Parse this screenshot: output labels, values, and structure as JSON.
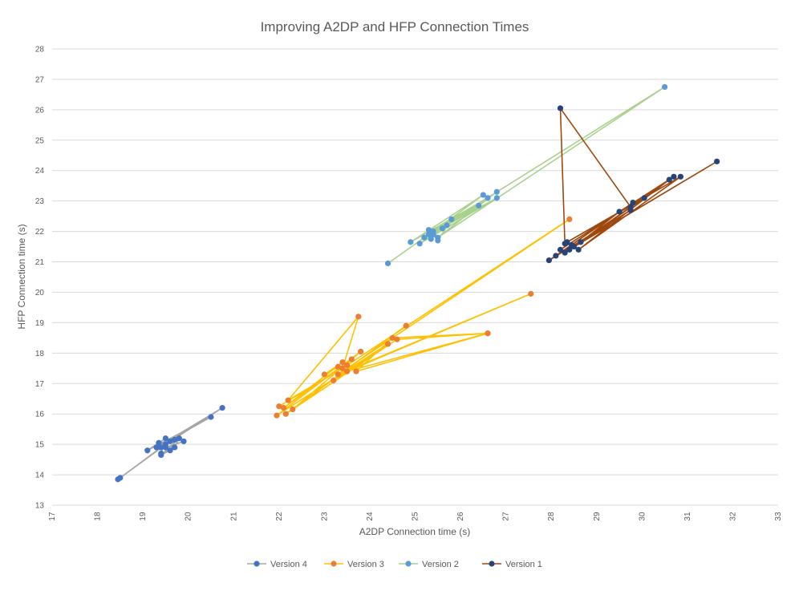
{
  "chart_data": {
    "type": "scatter",
    "title": "Improving A2DP and HFP Connection Times",
    "xlabel": "A2DP Connection time (s)",
    "ylabel": "HFP Connection time (s)",
    "xlim": [
      17,
      33
    ],
    "ylim": [
      13,
      28
    ],
    "xticks": [
      "17",
      "18",
      "19",
      "20",
      "21",
      "22",
      "23",
      "24",
      "25",
      "26",
      "27",
      "28",
      "29",
      "30",
      "31",
      "32",
      "33"
    ],
    "yticks": [
      "13",
      "14",
      "15",
      "16",
      "17",
      "18",
      "19",
      "20",
      "21",
      "22",
      "23",
      "24",
      "25",
      "26",
      "27",
      "28"
    ],
    "grid": true,
    "legend_position": "bottom",
    "series": [
      {
        "name": "Version 4",
        "marker_color": "#4472C4",
        "line_color": "#A5A5A5",
        "points": [
          [
            19.5,
            15.0
          ],
          [
            18.45,
            13.85
          ],
          [
            19.6,
            15.1
          ],
          [
            18.5,
            13.9
          ],
          [
            19.4,
            14.9
          ],
          [
            20.75,
            16.2
          ],
          [
            19.3,
            14.9
          ],
          [
            20.5,
            15.9
          ],
          [
            19.1,
            14.8
          ],
          [
            19.5,
            15.2
          ],
          [
            19.4,
            14.7
          ],
          [
            19.7,
            14.9
          ],
          [
            19.8,
            15.2
          ],
          [
            19.4,
            14.65
          ],
          [
            19.6,
            14.8
          ],
          [
            19.7,
            15.15
          ],
          [
            19.35,
            15.05
          ],
          [
            19.5,
            14.9
          ],
          [
            19.9,
            15.1
          ]
        ]
      },
      {
        "name": "Version 3",
        "marker_color": "#ED7D31",
        "line_color": "#FFC000",
        "points": [
          [
            22.0,
            16.25
          ],
          [
            23.4,
            17.5
          ],
          [
            23.75,
            19.2
          ],
          [
            22.2,
            16.45
          ],
          [
            23.5,
            17.6
          ],
          [
            28.4,
            22.4
          ],
          [
            23.3,
            17.3
          ],
          [
            27.55,
            19.95
          ],
          [
            23.5,
            17.4
          ],
          [
            26.6,
            18.65
          ],
          [
            24.5,
            18.5
          ],
          [
            23.7,
            17.4
          ],
          [
            26.6,
            18.65
          ],
          [
            24.6,
            18.45
          ],
          [
            22.15,
            16.0
          ],
          [
            24.8,
            18.9
          ],
          [
            22.3,
            16.15
          ],
          [
            23.8,
            18.05
          ],
          [
            21.95,
            15.95
          ],
          [
            24.4,
            18.3
          ],
          [
            23.2,
            17.1
          ],
          [
            23.6,
            17.8
          ],
          [
            22.1,
            16.2
          ],
          [
            23.4,
            17.7
          ],
          [
            23.0,
            17.3
          ],
          [
            23.3,
            17.55
          ]
        ]
      },
      {
        "name": "Version 2",
        "marker_color": "#5B9BD5",
        "line_color": "#A9D18E",
        "points": [
          [
            24.4,
            20.95
          ],
          [
            25.3,
            21.9
          ],
          [
            30.5,
            26.75
          ],
          [
            25.5,
            21.8
          ],
          [
            26.8,
            23.3
          ],
          [
            25.4,
            22.0
          ],
          [
            26.5,
            23.2
          ],
          [
            24.9,
            21.65
          ],
          [
            26.6,
            23.1
          ],
          [
            25.1,
            21.6
          ],
          [
            26.8,
            23.1
          ],
          [
            25.2,
            21.8
          ],
          [
            26.4,
            22.85
          ],
          [
            25.6,
            22.1
          ],
          [
            25.3,
            22.05
          ],
          [
            25.7,
            22.2
          ],
          [
            25.8,
            22.4
          ],
          [
            25.5,
            21.7
          ],
          [
            25.4,
            21.9
          ],
          [
            25.35,
            21.75
          ]
        ]
      },
      {
        "name": "Version 1",
        "marker_color": "#264478",
        "line_color": "#9E480E",
        "points": [
          [
            28.3,
            21.6
          ],
          [
            28.2,
            26.05
          ],
          [
            29.75,
            22.8
          ],
          [
            28.4,
            21.4
          ],
          [
            31.65,
            24.3
          ],
          [
            28.5,
            21.5
          ],
          [
            30.7,
            23.8
          ],
          [
            28.2,
            21.4
          ],
          [
            30.6,
            23.7
          ],
          [
            28.6,
            21.4
          ],
          [
            30.85,
            23.8
          ],
          [
            28.35,
            21.65
          ],
          [
            30.05,
            23.1
          ],
          [
            28.65,
            21.65
          ],
          [
            29.5,
            22.65
          ],
          [
            28.1,
            21.2
          ],
          [
            29.8,
            22.95
          ],
          [
            27.95,
            21.05
          ],
          [
            29.75,
            22.7
          ],
          [
            28.3,
            21.3
          ],
          [
            28.45,
            21.55
          ]
        ]
      }
    ]
  }
}
